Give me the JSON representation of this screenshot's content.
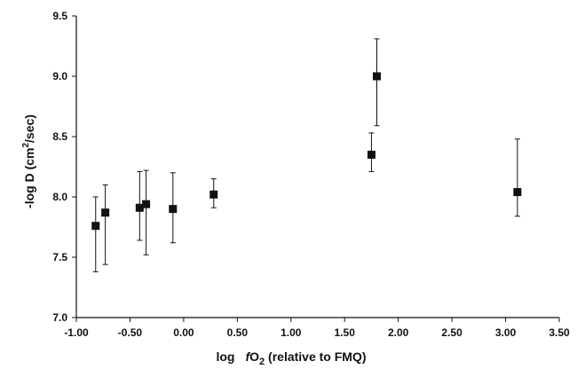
{
  "chart_data": {
    "type": "scatter",
    "title": "",
    "xlabel": {
      "prefix": "log",
      "var": "f",
      "mid": "O",
      "sub": "2",
      "suffix": " (relative to FMQ)"
    },
    "ylabel": {
      "pre": "-log D (cm",
      "sup": "2",
      "post": "/sec)"
    },
    "xlim": [
      -1.0,
      3.5
    ],
    "ylim": [
      7.0,
      9.5
    ],
    "xticks": [
      -1.0,
      -0.5,
      0.0,
      0.5,
      1.0,
      1.5,
      2.0,
      2.5,
      3.0,
      3.5
    ],
    "xtick_labels": [
      "-1.00",
      "-0.50",
      "0.00",
      "0.50",
      "1.00",
      "1.50",
      "2.00",
      "2.50",
      "3.00",
      "3.50"
    ],
    "yticks": [
      7.0,
      7.5,
      8.0,
      8.5,
      9.0,
      9.5
    ],
    "ytick_labels": [
      "7.0",
      "7.5",
      "8.0",
      "8.5",
      "9.0",
      "9.5"
    ],
    "grid": false,
    "marker": "filled-square",
    "points": [
      {
        "x": -0.82,
        "y": 7.76,
        "y_low": 7.38,
        "y_high": 8.0
      },
      {
        "x": -0.73,
        "y": 7.87,
        "y_low": 7.44,
        "y_high": 8.1
      },
      {
        "x": -0.41,
        "y": 7.91,
        "y_low": 7.64,
        "y_high": 8.21
      },
      {
        "x": -0.35,
        "y": 7.94,
        "y_low": 7.52,
        "y_high": 8.22
      },
      {
        "x": -0.1,
        "y": 7.9,
        "y_low": 7.62,
        "y_high": 8.2
      },
      {
        "x": 0.28,
        "y": 8.02,
        "y_low": 7.91,
        "y_high": 8.15
      },
      {
        "x": 1.75,
        "y": 8.35,
        "y_low": 8.21,
        "y_high": 8.53
      },
      {
        "x": 1.8,
        "y": 9.0,
        "y_low": 8.59,
        "y_high": 9.31
      },
      {
        "x": 3.11,
        "y": 8.04,
        "y_low": 7.84,
        "y_high": 8.48
      }
    ]
  }
}
